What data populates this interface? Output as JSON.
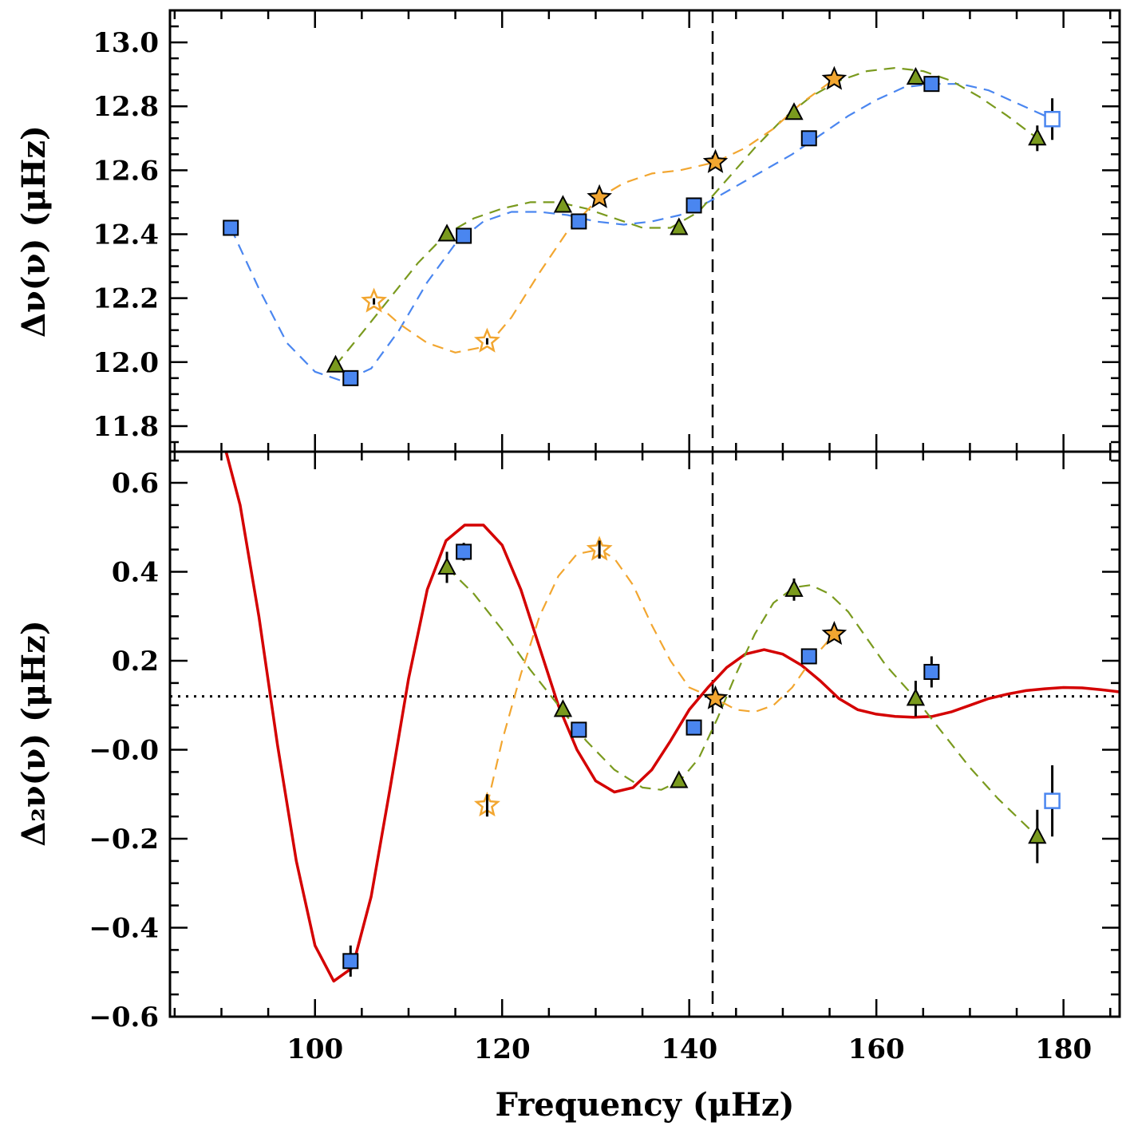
{
  "colors": {
    "square": "#4a86f0",
    "triangle": "#7a9a1e",
    "star": "#f2a630",
    "red_curve": "#d40000",
    "axis": "#000000"
  },
  "chart_data": [
    {
      "type": "scatter",
      "title": "",
      "ylabel": "Δν(ν) (μHz)",
      "xlim": [
        84.5,
        186.0
      ],
      "ylim": [
        11.72,
        13.1
      ],
      "y_ticks": [
        11.8,
        12.0,
        12.2,
        12.4,
        12.6,
        12.8,
        13.0
      ],
      "y_tick_labels": [
        "11.8",
        "12.0",
        "12.2",
        "12.4",
        "12.6",
        "12.8",
        "13.0"
      ],
      "vline_x": 142.5,
      "series": [
        {
          "name": "squares",
          "marker": "square",
          "color": "#4a86f0",
          "x": [
            91.0,
            103.8,
            115.9,
            128.2,
            140.5,
            152.8,
            165.9
          ],
          "y": [
            12.42,
            11.95,
            12.395,
            12.44,
            12.49,
            12.7,
            12.87
          ],
          "err": [
            0.01,
            0.01,
            0.01,
            0.01,
            0.01,
            0.01,
            0.015
          ]
        },
        {
          "name": "squares open",
          "marker": "square-open",
          "color": "#4a86f0",
          "x": [
            178.8
          ],
          "y": [
            12.76
          ],
          "err": [
            0.065
          ]
        },
        {
          "name": "triangles",
          "marker": "triangle",
          "color": "#7a9a1e",
          "x": [
            102.2,
            114.1,
            126.5,
            138.9,
            151.2,
            164.2,
            177.2
          ],
          "y": [
            11.99,
            12.4,
            12.49,
            12.42,
            12.78,
            12.89,
            12.7
          ],
          "err": [
            0.01,
            0.01,
            0.01,
            0.01,
            0.01,
            0.01,
            0.04
          ]
        },
        {
          "name": "stars filled",
          "marker": "star",
          "color": "#f2a630",
          "x": [
            130.4,
            142.8,
            155.5
          ],
          "y": [
            12.515,
            12.625,
            12.885
          ],
          "err": [
            0.01,
            0.01,
            0.01
          ]
        },
        {
          "name": "stars open",
          "marker": "star-open",
          "color": "#f2a630",
          "x": [
            106.3,
            118.4
          ],
          "y": [
            12.19,
            12.065
          ],
          "err": [
            0.01,
            0.01
          ]
        }
      ],
      "curves": [
        {
          "name": "square fit",
          "style": "dashed",
          "color": "#4a86f0",
          "x": [
            91.0,
            94,
            97,
            100,
            103,
            106,
            109,
            112,
            115,
            118,
            121,
            124,
            127,
            130,
            133,
            136,
            139,
            142,
            145,
            148,
            151,
            154,
            157,
            160,
            163,
            166,
            169,
            172,
            175,
            178.8
          ],
          "y": [
            12.42,
            12.23,
            12.06,
            11.97,
            11.94,
            11.98,
            12.1,
            12.25,
            12.37,
            12.44,
            12.47,
            12.47,
            12.46,
            12.44,
            12.43,
            12.44,
            12.46,
            12.5,
            12.55,
            12.6,
            12.65,
            12.71,
            12.77,
            12.82,
            12.86,
            12.87,
            12.87,
            12.85,
            12.81,
            12.76
          ]
        },
        {
          "name": "triangle fit",
          "style": "dashed",
          "color": "#7a9a1e",
          "x": [
            102.2,
            105,
            108,
            111,
            114,
            117,
            120,
            123,
            126,
            129,
            132,
            135,
            138,
            141,
            144,
            147,
            150,
            153,
            156,
            159,
            162,
            165,
            168,
            171,
            174,
            177.2
          ],
          "y": [
            11.99,
            12.09,
            12.2,
            12.31,
            12.4,
            12.45,
            12.48,
            12.5,
            12.5,
            12.48,
            12.45,
            12.42,
            12.42,
            12.47,
            12.57,
            12.67,
            12.76,
            12.83,
            12.88,
            12.91,
            12.92,
            12.91,
            12.88,
            12.83,
            12.77,
            12.7
          ]
        },
        {
          "name": "star fit",
          "style": "dashed",
          "color": "#f2a630",
          "x": [
            106.3,
            109,
            112,
            115,
            118.4,
            121,
            124,
            127,
            130.4,
            133,
            136,
            139,
            142.8,
            146,
            149,
            152,
            155.5
          ],
          "y": [
            12.19,
            12.12,
            12.06,
            12.03,
            12.05,
            12.14,
            12.28,
            12.41,
            12.515,
            12.56,
            12.59,
            12.6,
            12.625,
            12.67,
            12.73,
            12.81,
            12.885
          ]
        }
      ]
    },
    {
      "type": "scatter",
      "title": "",
      "xlabel": "Frequency (μHz)",
      "ylabel": "Δ₂ν(ν) (μHz)",
      "xlim": [
        84.5,
        186.0
      ],
      "ylim": [
        -0.6,
        0.67
      ],
      "x_ticks": [
        100,
        120,
        140,
        160,
        180
      ],
      "x_tick_labels": [
        "100",
        "120",
        "140",
        "160",
        "180"
      ],
      "y_ticks": [
        -0.6,
        -0.4,
        -0.2,
        0.0,
        0.2,
        0.4,
        0.6
      ],
      "y_tick_labels": [
        "−0.6",
        "−0.4",
        "−0.2",
        "−0.0",
        "0.2",
        "0.4",
        "0.6"
      ],
      "vline_x": 142.5,
      "hline_y": 0.12,
      "series": [
        {
          "name": "squares",
          "marker": "square",
          "color": "#4a86f0",
          "x": [
            103.8,
            115.9,
            128.2,
            140.5,
            152.8,
            165.9
          ],
          "y": [
            -0.475,
            0.445,
            0.045,
            0.05,
            0.21,
            0.175
          ],
          "err": [
            0.035,
            0.02,
            0.01,
            0.01,
            0.01,
            0.035
          ]
        },
        {
          "name": "squares open",
          "marker": "square-open",
          "color": "#4a86f0",
          "x": [
            178.8
          ],
          "y": [
            -0.115
          ],
          "err": [
            0.08
          ]
        },
        {
          "name": "triangles",
          "marker": "triangle",
          "color": "#7a9a1e",
          "x": [
            114.1,
            126.5,
            138.9,
            151.2,
            164.2,
            177.2
          ],
          "y": [
            0.41,
            0.09,
            -0.07,
            0.36,
            0.115,
            -0.195
          ],
          "err": [
            0.035,
            0.01,
            0.01,
            0.025,
            0.04,
            0.06
          ]
        },
        {
          "name": "stars filled",
          "marker": "star",
          "color": "#f2a630",
          "x": [
            142.8,
            155.5
          ],
          "y": [
            0.115,
            0.26
          ],
          "err": [
            0.01,
            0.01
          ]
        },
        {
          "name": "stars open",
          "marker": "star-open",
          "color": "#f2a630",
          "x": [
            118.4,
            130.4
          ],
          "y": [
            -0.125,
            0.45
          ],
          "err": [
            0.025,
            0.02
          ]
        }
      ],
      "curves": [
        {
          "name": "oscillation model",
          "style": "solid",
          "color": "#d40000",
          "x": [
            90.5,
            92,
            94,
            96,
            98,
            100,
            102,
            104,
            106,
            108,
            110,
            112,
            114,
            116,
            118,
            120,
            122,
            124,
            126,
            128,
            130,
            132,
            134,
            136,
            138,
            140,
            142,
            144,
            146,
            148,
            150,
            152,
            154,
            156,
            158,
            160,
            162,
            164,
            166,
            168,
            170,
            172,
            174,
            176,
            178,
            180,
            182,
            184,
            186
          ],
          "y": [
            0.67,
            0.55,
            0.3,
            0.01,
            -0.25,
            -0.44,
            -0.52,
            -0.49,
            -0.33,
            -0.09,
            0.16,
            0.36,
            0.47,
            0.505,
            0.505,
            0.46,
            0.36,
            0.23,
            0.1,
            0.0,
            -0.07,
            -0.095,
            -0.085,
            -0.045,
            0.02,
            0.09,
            0.14,
            0.185,
            0.215,
            0.225,
            0.215,
            0.19,
            0.155,
            0.115,
            0.09,
            0.08,
            0.075,
            0.073,
            0.075,
            0.085,
            0.1,
            0.115,
            0.125,
            0.133,
            0.137,
            0.14,
            0.139,
            0.135,
            0.13
          ]
        },
        {
          "name": "triangle fit",
          "style": "dashed",
          "color": "#7a9a1e",
          "x": [
            114.1,
            117,
            120,
            123,
            126,
            129,
            132,
            135,
            137,
            139,
            141,
            143,
            145,
            147,
            149,
            151.2,
            153,
            155,
            157,
            159,
            161,
            164.2,
            167,
            170,
            173,
            177.2
          ],
          "y": [
            0.41,
            0.35,
            0.27,
            0.18,
            0.1,
            0.02,
            -0.045,
            -0.085,
            -0.09,
            -0.07,
            -0.02,
            0.07,
            0.17,
            0.26,
            0.33,
            0.365,
            0.37,
            0.35,
            0.31,
            0.25,
            0.19,
            0.115,
            0.04,
            -0.04,
            -0.11,
            -0.195
          ]
        },
        {
          "name": "star fit",
          "style": "dashed",
          "color": "#f2a630",
          "x": [
            118.4,
            120,
            122,
            124,
            126,
            128,
            130.4,
            132,
            134,
            136,
            138,
            140,
            142.8,
            145,
            147,
            149,
            151,
            153,
            155.5
          ],
          "y": [
            -0.125,
            0.02,
            0.17,
            0.3,
            0.39,
            0.44,
            0.45,
            0.43,
            0.37,
            0.28,
            0.2,
            0.14,
            0.115,
            0.09,
            0.085,
            0.1,
            0.14,
            0.2,
            0.26
          ]
        }
      ]
    }
  ]
}
